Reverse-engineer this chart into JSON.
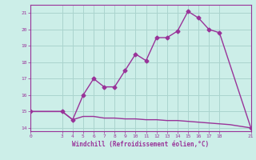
{
  "xlabel": "Windchill (Refroidissement éolien,°C)",
  "bg_color": "#cceee8",
  "grid_color": "#aad4ce",
  "line_color": "#993399",
  "x_main": [
    0,
    3,
    4,
    5,
    6,
    7,
    8,
    9,
    10,
    11,
    12,
    13,
    14,
    15,
    16,
    17,
    18,
    21
  ],
  "y_main": [
    15.0,
    15.0,
    14.5,
    16.0,
    17.0,
    16.5,
    16.5,
    17.5,
    18.5,
    18.1,
    19.5,
    19.5,
    19.9,
    21.1,
    20.7,
    20.0,
    19.8,
    14.0
  ],
  "x_flat": [
    0,
    3,
    4,
    5,
    6,
    7,
    8,
    9,
    10,
    11,
    12,
    13,
    14,
    15,
    16,
    17,
    18,
    19,
    20,
    21
  ],
  "y_flat": [
    15.0,
    15.0,
    14.5,
    14.7,
    14.7,
    14.6,
    14.6,
    14.55,
    14.55,
    14.5,
    14.5,
    14.45,
    14.45,
    14.4,
    14.35,
    14.3,
    14.25,
    14.2,
    14.1,
    14.0
  ],
  "xlim": [
    0,
    21
  ],
  "ylim": [
    13.8,
    21.5
  ],
  "xticks": [
    0,
    3,
    4,
    5,
    6,
    7,
    8,
    9,
    10,
    11,
    12,
    13,
    14,
    15,
    16,
    17,
    18,
    21
  ],
  "yticks": [
    14,
    15,
    16,
    17,
    18,
    19,
    20,
    21
  ],
  "marker": "D",
  "markersize": 2.5,
  "linewidth": 1.0
}
